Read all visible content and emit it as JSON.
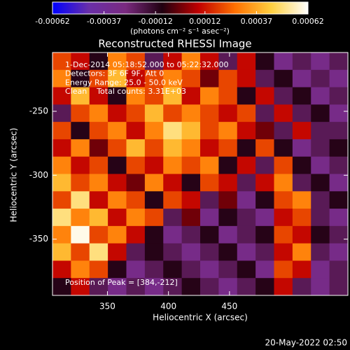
{
  "chart_data": {
    "type": "heatmap",
    "title": "Reconstructed RHESSI Image",
    "x_label": "Heliocentric X (arcsec)",
    "y_label": "Heliocentric Y (arcsec)",
    "xlim": [
      305,
      547
    ],
    "ylim": [
      -394,
      -204
    ],
    "xticks": [
      350,
      400,
      450
    ],
    "yticks": [
      -250,
      -300,
      -350
    ],
    "zlim": [
      -0.00062,
      0.00062
    ],
    "colorbar_ticks": [
      -0.00062,
      -0.00037,
      -0.00012,
      0.00012,
      0.00037,
      0.00062
    ],
    "colorbar_label": "(photons cm⁻² s⁻¹ asec⁻²)",
    "colormap": [
      "#0000ff",
      "#6a2fa8",
      "#7a2a80",
      "#200010",
      "#c00000",
      "#ff7000",
      "#ffd040",
      "#ffffff"
    ],
    "annotations": [
      "1-Dec-2014 05:18:52.000 to 05:22:32.000",
      "Detectors: 3F 6F 9F, Att 0",
      "Energy Range: 25.0 - 50.0 keV",
      "Clean    Total counts: 3.31E+03"
    ],
    "peak_label": "Position of Peak = [384,-212]",
    "timestamp": "20-May-2022 02:50",
    "z": [
      [
        0.0002,
        0.0001,
        -0.0001,
        0.0003,
        0.0002,
        -0.0002,
        0.0001,
        0.0003,
        0.0001,
        -0.0002,
        0.0001,
        -0.0001,
        -0.0003,
        -0.0002,
        -0.0003,
        -0.0002
      ],
      [
        0.0003,
        -0.0001,
        0.0002,
        0.0004,
        0.0001,
        0.0002,
        0.0003,
        0.0002,
        0.0,
        0.0002,
        0.0001,
        -0.0002,
        -0.0001,
        -0.0003,
        -0.0002,
        -0.0003
      ],
      [
        0.0001,
        0.0004,
        0.0001,
        -0.0001,
        0.0003,
        0.0002,
        0.0004,
        0.0001,
        0.0003,
        0.0002,
        -0.0001,
        0.0001,
        -0.0002,
        -0.0001,
        -0.0003,
        -0.0002
      ],
      [
        -0.0002,
        0.0002,
        0.0003,
        0.0001,
        0.0002,
        0.0004,
        0.0002,
        0.0003,
        0.0002,
        0.0001,
        0.0002,
        -0.0002,
        0.0001,
        -0.0002,
        -0.0001,
        -0.0003
      ],
      [
        0.0002,
        -0.0001,
        0.0002,
        0.0003,
        0.0001,
        0.0003,
        0.0005,
        0.0004,
        0.0002,
        0.0003,
        0.0001,
        0.0,
        -0.0002,
        0.0001,
        -0.0002,
        -0.0002
      ],
      [
        0.0001,
        0.0003,
        0.0,
        0.0002,
        0.0004,
        0.0002,
        0.0004,
        0.0003,
        0.0001,
        0.0002,
        -0.0001,
        0.0002,
        -0.0001,
        -0.0003,
        -0.0002,
        -0.0001
      ],
      [
        0.0003,
        0.0001,
        0.0002,
        -0.0001,
        0.0002,
        0.0001,
        0.0003,
        0.0002,
        0.0003,
        -0.0001,
        0.0001,
        -0.0002,
        0.0002,
        -0.0001,
        -0.0003,
        -0.0002
      ],
      [
        0.0004,
        0.0002,
        0.0003,
        0.0001,
        0.0,
        0.0003,
        0.0001,
        -0.0001,
        0.0002,
        0.0001,
        -0.0002,
        0.0001,
        0.0003,
        -0.0002,
        -0.0001,
        -0.0003
      ],
      [
        0.0002,
        0.0005,
        0.0001,
        0.0003,
        0.0002,
        -0.0001,
        0.0002,
        0.0001,
        -0.0002,
        0.0,
        -0.0003,
        -0.0001,
        0.0002,
        0.0003,
        -0.0002,
        -0.0001
      ],
      [
        0.0005,
        0.0003,
        0.0004,
        0.0001,
        0.0003,
        0.0002,
        -0.0002,
        0.0,
        -0.0003,
        -0.0001,
        -0.0002,
        -0.0003,
        0.0001,
        0.0002,
        -0.0002,
        -0.0003
      ],
      [
        0.0003,
        0.0006,
        0.0002,
        0.0003,
        0.0001,
        -0.0001,
        -0.0003,
        -0.0002,
        -0.0001,
        -0.0003,
        -0.0002,
        -0.0001,
        0.0002,
        0.0001,
        -0.0001,
        -0.0002
      ],
      [
        0.0004,
        0.0002,
        0.0005,
        0.0001,
        -0.0002,
        -0.0001,
        -0.0002,
        -0.0003,
        -0.0002,
        -0.0001,
        -0.0003,
        -0.0002,
        0.0001,
        0.0003,
        -0.0002,
        -0.0003
      ],
      [
        0.0001,
        0.0003,
        0.0002,
        -0.0001,
        -0.0003,
        -0.0002,
        -0.0001,
        -0.0002,
        -0.0003,
        -0.0002,
        -0.0001,
        -0.0003,
        0.0002,
        0.0001,
        -0.0003,
        -0.0002
      ],
      [
        -0.0001,
        0.0001,
        -0.0002,
        -0.0003,
        -0.0002,
        -0.0003,
        -0.0002,
        -0.0001,
        -0.0002,
        -0.0003,
        -0.0002,
        -0.0001,
        0.0001,
        -0.0002,
        -0.0003,
        -0.0002
      ]
    ]
  }
}
